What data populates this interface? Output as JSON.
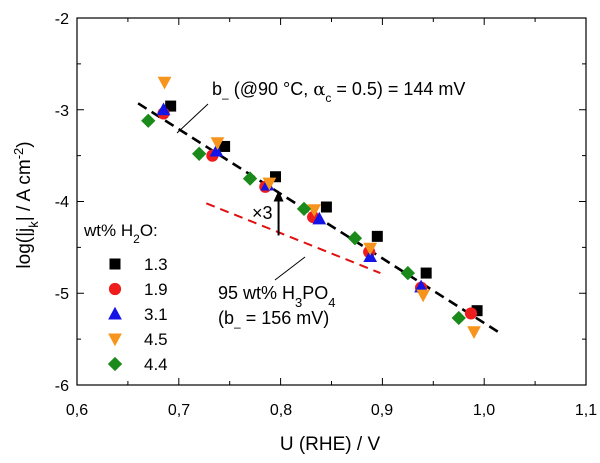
{
  "chart_data": {
    "type": "scatter",
    "title": "",
    "xlabel": "U (RHE) / V",
    "ylabel": "log(|j_k| / A cm^-2)",
    "xlim": [
      0.6,
      1.1
    ],
    "ylim": [
      -6,
      -2
    ],
    "x_ticks": [
      "0,6",
      "0,7",
      "0,8",
      "0,9",
      "1,0",
      "1,1"
    ],
    "y_ticks": [
      "-2",
      "-3",
      "-4",
      "-5",
      "-6"
    ],
    "legend_title": "wt% H2O:",
    "legend_position": "left",
    "series": [
      {
        "name": "1.3",
        "marker": "square",
        "color": "#000000",
        "x": [
          0.692,
          0.745,
          0.795,
          0.845,
          0.895,
          0.943,
          0.993
        ],
        "y": [
          -2.96,
          -3.4,
          -3.73,
          -4.06,
          -4.38,
          -4.78,
          -5.19
        ]
      },
      {
        "name": "1.9",
        "marker": "circle",
        "color": "#ee1c1c",
        "x": [
          0.685,
          0.733,
          0.785,
          0.832,
          0.887,
          0.938,
          0.987
        ],
        "y": [
          -3.04,
          -3.5,
          -3.84,
          -4.17,
          -4.55,
          -4.94,
          -5.22
        ]
      },
      {
        "name": "3.1",
        "marker": "triangle-up",
        "color": "#1414e6",
        "x": [
          0.685,
          0.737,
          0.787,
          0.838,
          0.888,
          0.938
        ],
        "y": [
          -3.0,
          -3.45,
          -3.82,
          -4.19,
          -4.6,
          -4.93
        ]
      },
      {
        "name": "4.5",
        "marker": "triangle-down",
        "color": "#f7941d",
        "x": [
          0.686,
          0.738,
          0.789,
          0.833,
          0.888,
          0.94,
          0.99
        ],
        "y": [
          -2.7,
          -3.36,
          -3.8,
          -4.09,
          -4.51,
          -5.02,
          -5.42
        ]
      },
      {
        "name": "4.4",
        "marker": "diamond",
        "color": "#1a8a1a",
        "x": [
          0.67,
          0.72,
          0.77,
          0.823,
          0.873,
          0.925,
          0.975
        ],
        "y": [
          -3.12,
          -3.48,
          -3.75,
          -4.08,
          -4.4,
          -4.78,
          -5.27
        ]
      }
    ],
    "fit_line": {
      "x": [
        0.66,
        1.015
      ],
      "y": [
        -2.93,
        -5.43
      ],
      "style": "dashed",
      "color": "#000000"
    },
    "reference_line": {
      "x": [
        0.727,
        0.898
      ],
      "y": [
        -4.02,
        -4.78
      ],
      "style": "dashed",
      "color": "#e01010"
    },
    "factor_arrow": {
      "x": 0.798,
      "y_from": -4.37,
      "y_to": -3.88,
      "label": "×3"
    },
    "annotations": [
      {
        "text_b": "b",
        "text_rest": " (@90 °C, ",
        "text_alpha": "α",
        "text_c": "c",
        "text_val": " = 0.5) = 144 mV"
      },
      {
        "text": "95 wt% H",
        "sub": "3",
        "text2": "PO",
        "sub2": "4"
      },
      {
        "text": "(b",
        "text2": " = 156 mV)"
      }
    ]
  }
}
